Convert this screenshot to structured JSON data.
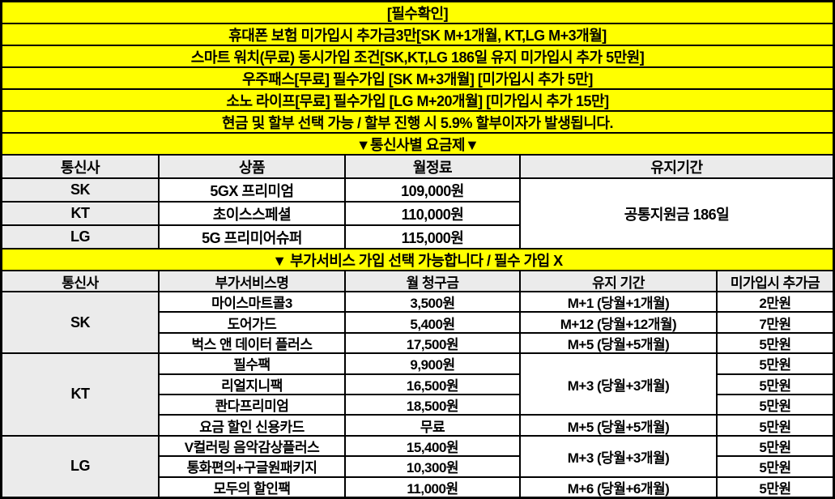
{
  "colors": {
    "banner_bg": "#ffff00",
    "header_bg": "#ebebeb",
    "cell_bg": "#ffffff",
    "grid_line": "#000000",
    "text": "#000000"
  },
  "banners": [
    "[필수확인]",
    "휴대폰 보험 미가입시 추가금3만[SK M+1개월, KT,LG M+3개월]",
    "스마트 워치(무료) 동시가입 조건[SK,KT,LG 186일 유지 미가입시 추가 5만원]",
    "우주패스[무료] 필수가입 [SK M+3개월] [미가입시 추가 5만]",
    "소노 라이프[무료] 필수가입 [LG M+20개월] [미가입시 추가 15만]",
    "현금 및 할부 선택 가능 / 할부 진행 시 5.9% 할부이자가 발생됩니다.",
    "▼통신사별 요금제▼"
  ],
  "plan_table": {
    "headers": [
      "통신사",
      "상품",
      "월정료",
      "유지기간"
    ],
    "rows": [
      {
        "carrier": "SK",
        "product": "5GX 프리미엄",
        "monthly_fee": "109,000원"
      },
      {
        "carrier": "KT",
        "product": "초이스스페셜",
        "monthly_fee": "110,000원"
      },
      {
        "carrier": "LG",
        "product": "5G 프리미어슈퍼",
        "monthly_fee": "115,000원"
      }
    ],
    "retention": "공통지원금 186일"
  },
  "addon_banner": "▼ 부가서비스 가입 선택 가능합니다 / 필수 가입 X",
  "addon_table": {
    "headers": [
      "통신사",
      "부가서비스명",
      "월 청구금",
      "유지 기간",
      "미가입시 추가금"
    ],
    "carriers": [
      "SK",
      "KT",
      "LG"
    ],
    "rows": [
      {
        "name": "마이스마트콜3",
        "fee": "3,500원",
        "period": "M+1 (당월+1개월)",
        "penalty": "2만원"
      },
      {
        "name": "도어가드",
        "fee": "5,400원",
        "period": "M+12 (당월+12개월)",
        "penalty": "7만원"
      },
      {
        "name": "벅스 앤 데이터 플러스",
        "fee": "17,500원",
        "period": "M+5 (당월+5개월)",
        "penalty": "5만원"
      },
      {
        "name": "필수팩",
        "fee": "9,900원",
        "period": "M+3 (당월+3개월)",
        "penalty": "5만원"
      },
      {
        "name": "리얼지니팩",
        "fee": "16,500원",
        "penalty": "5만원"
      },
      {
        "name": "콴다프리미엄",
        "fee": "18,500원",
        "penalty": "5만원"
      },
      {
        "name": "요금 할인 신용카드",
        "fee": "무료",
        "period": "M+5 (당월+5개월)",
        "penalty": "5만원"
      },
      {
        "name": "V컬러링 음악감상플러스",
        "fee": "15,400원",
        "period": "M+3 (당월+3개월)",
        "penalty": "5만원"
      },
      {
        "name": "통화편의+구글원패키지",
        "fee": "10,300원",
        "penalty": "5만원"
      },
      {
        "name": "모두의 할인팩",
        "fee": "11,000원",
        "period": "M+6 (당월+6개월)",
        "penalty": "5만원"
      }
    ]
  }
}
